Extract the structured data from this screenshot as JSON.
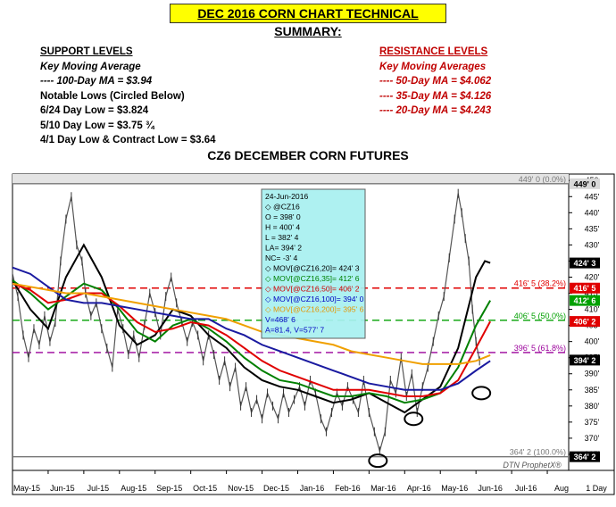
{
  "header": {
    "title": "DEC 2016 CORN CHART TECHNICAL SUMMARY:"
  },
  "support": {
    "heading": "SUPPORT LEVELS",
    "lines": [
      "Key Moving Average",
      "---- 100-Day MA = $3.94",
      "Notable Lows (Circled Below)",
      "6/24 Day Low = $3.824",
      "5/10 Day Low = $3.75 ¾",
      "4/1 Day Low & Contract Low = $3.64"
    ]
  },
  "resistance": {
    "heading": "RESISTANCE LEVELS",
    "lines": [
      "Key Moving Averages",
      "---- 50-Day MA = $4.062",
      "---- 35-Day MA = $4.126",
      "---- 20-Day MA = $4.243"
    ]
  },
  "chart_data": {
    "type": "line",
    "title": "CZ6 DECEMBER CORN FUTURES",
    "watermark": "DTN ProphetX®",
    "period_label": "1 Day",
    "x_tick_labels": [
      "May-15",
      "Jun-15",
      "Jul-15",
      "Aug-15",
      "Sep-15",
      "Oct-15",
      "Nov-15",
      "Dec-15",
      "Jan-16",
      "Feb-16",
      "Mar-16",
      "Apr-16",
      "May-16",
      "Jun-16",
      "Jul-16",
      "Aug"
    ],
    "y_axis": {
      "min": 360,
      "max": 452,
      "ticks": [
        "450",
        "445'",
        "440'",
        "435'",
        "430'",
        "425'",
        "420'",
        "415'",
        "410'",
        "405'",
        "400'",
        "395'",
        "390'",
        "385'",
        "380'",
        "375'",
        "370'",
        "365'"
      ]
    },
    "horizontal_levels": [
      {
        "label": "449' 0 (0.0%)",
        "value": 449,
        "color": "#777777",
        "style": "solid"
      },
      {
        "label": "416' 5 (38.2%)",
        "value": 416.6,
        "color": "#e00000",
        "style": "dashed"
      },
      {
        "label": "406' 5 (50.0%)",
        "value": 406.6,
        "color": "#00a000",
        "style": "dashed"
      },
      {
        "label": "396' 5 (61.8%)",
        "value": 396.6,
        "color": "#9b009b",
        "style": "dashed"
      },
      {
        "label": "364' 2 (100.0%)",
        "value": 364.25,
        "color": "#777777",
        "style": "solid"
      }
    ],
    "price_tags": [
      {
        "text": "449' 0",
        "value": 449,
        "bg": "#d8d8d8",
        "fg": "#000000"
      },
      {
        "text": "424' 3",
        "value": 424.4,
        "bg": "#000000",
        "fg": "#ffffff"
      },
      {
        "text": "416' 5",
        "value": 416.6,
        "bg": "#e00000",
        "fg": "#ffffff"
      },
      {
        "text": "412' 6",
        "value": 412.75,
        "bg": "#00a000",
        "fg": "#ffffff"
      },
      {
        "text": "406' 2",
        "value": 406.25,
        "bg": "#e00000",
        "fg": "#ffffff"
      },
      {
        "text": "394' 2",
        "value": 394.25,
        "bg": "#000000",
        "fg": "#ffffff"
      },
      {
        "text": "364' 2",
        "value": 364.25,
        "bg": "#000000",
        "fg": "#ffffff"
      }
    ],
    "tooltip": {
      "lines": [
        {
          "text": "24-Jun-2016",
          "color": "#000000"
        },
        {
          "text": "◇ @CZ16",
          "color": "#000000"
        },
        {
          "text": "O = 398' 0",
          "color": "#000000"
        },
        {
          "text": "H = 400' 4",
          "color": "#000000"
        },
        {
          "text": "L = 382' 4",
          "color": "#000000"
        },
        {
          "text": "LA= 394' 2",
          "color": "#000000"
        },
        {
          "text": "NC= -3' 4",
          "color": "#000000"
        },
        {
          "text": "◇ MOV[@CZ16,20]= 424' 3",
          "color": "#000000"
        },
        {
          "text": "◇ MOV[@CZ16,35]= 412' 6",
          "color": "#008000"
        },
        {
          "text": "◇ MOV[@CZ16,50]= 406' 2",
          "color": "#d00000"
        },
        {
          "text": "◇ MOV[@CZ16,100]= 394' 0",
          "color": "#0000c0"
        },
        {
          "text": "◇ MOV[@CZ16,200]= 395' 6",
          "color": "#e69500"
        },
        {
          "text": "V=468' 6",
          "color": "#0000c0"
        },
        {
          "text": "A=81.4, V=577' 7",
          "color": "#0000c0"
        }
      ]
    },
    "price_x": [
      "May-15",
      "Jun-15",
      "Jul-15",
      "Aug-15",
      "Sep-15",
      "Oct-15",
      "Nov-15",
      "Dec-15",
      "Jan-16",
      "Feb-16",
      "Mar-16",
      "Apr-16",
      "May-16",
      "Jun-16",
      "Jun-16 end"
    ],
    "price": [
      415,
      405,
      422,
      398,
      402,
      414,
      404,
      392,
      382,
      378,
      382,
      368,
      390,
      425,
      394
    ],
    "series": [
      {
        "name": "MOV[@CZ16,20]",
        "color": "#000000",
        "points": [
          [
            0,
            419
          ],
          [
            0.5,
            410
          ],
          [
            1,
            404
          ],
          [
            1.5,
            420
          ],
          [
            2,
            430
          ],
          [
            2.5,
            420
          ],
          [
            3,
            405
          ],
          [
            3.5,
            399
          ],
          [
            4,
            402
          ],
          [
            4.5,
            410
          ],
          [
            5,
            408
          ],
          [
            5.5,
            402
          ],
          [
            6,
            398
          ],
          [
            6.5,
            392
          ],
          [
            7,
            388
          ],
          [
            7.5,
            386
          ],
          [
            8,
            385
          ],
          [
            8.5,
            383
          ],
          [
            9,
            381
          ],
          [
            9.5,
            382
          ],
          [
            10,
            384
          ],
          [
            10.5,
            381
          ],
          [
            11,
            378
          ],
          [
            11.5,
            382
          ],
          [
            12,
            386
          ],
          [
            12.5,
            398
          ],
          [
            13,
            420
          ],
          [
            13.25,
            425
          ],
          [
            13.4,
            424.4
          ]
        ]
      },
      {
        "name": "MOV[@CZ16,35]",
        "color": "#008000",
        "points": [
          [
            0,
            419
          ],
          [
            0.5,
            415
          ],
          [
            1,
            410
          ],
          [
            1.5,
            414
          ],
          [
            2,
            418
          ],
          [
            2.5,
            416
          ],
          [
            3,
            410
          ],
          [
            3.5,
            403
          ],
          [
            4,
            400
          ],
          [
            4.5,
            405
          ],
          [
            5,
            407
          ],
          [
            5.5,
            404
          ],
          [
            6,
            400
          ],
          [
            6.5,
            395
          ],
          [
            7,
            391
          ],
          [
            7.5,
            388
          ],
          [
            8,
            387
          ],
          [
            8.5,
            385
          ],
          [
            9,
            383
          ],
          [
            9.5,
            383
          ],
          [
            10,
            384
          ],
          [
            10.5,
            383
          ],
          [
            11,
            381
          ],
          [
            11.5,
            382
          ],
          [
            12,
            384
          ],
          [
            12.5,
            392
          ],
          [
            13,
            405
          ],
          [
            13.4,
            412.75
          ]
        ]
      },
      {
        "name": "MOV[@CZ16,50]",
        "color": "#e00000",
        "points": [
          [
            0,
            418
          ],
          [
            0.5,
            416
          ],
          [
            1,
            412
          ],
          [
            1.5,
            413
          ],
          [
            2,
            415
          ],
          [
            2.5,
            415
          ],
          [
            3,
            411
          ],
          [
            3.5,
            406
          ],
          [
            4,
            403
          ],
          [
            4.5,
            404
          ],
          [
            5,
            406
          ],
          [
            5.5,
            405
          ],
          [
            6,
            402
          ],
          [
            6.5,
            398
          ],
          [
            7,
            394
          ],
          [
            7.5,
            391
          ],
          [
            8,
            389
          ],
          [
            8.5,
            387
          ],
          [
            9,
            385
          ],
          [
            9.5,
            385
          ],
          [
            10,
            385
          ],
          [
            10.5,
            384
          ],
          [
            11,
            383
          ],
          [
            11.5,
            383
          ],
          [
            12,
            384
          ],
          [
            12.5,
            388
          ],
          [
            13,
            398
          ],
          [
            13.4,
            406.25
          ]
        ]
      },
      {
        "name": "MOV[@CZ16,100]",
        "color": "#1a1aa0",
        "points": [
          [
            0,
            423
          ],
          [
            0.5,
            421
          ],
          [
            1,
            417
          ],
          [
            1.5,
            413
          ],
          [
            2,
            412
          ],
          [
            2.5,
            412
          ],
          [
            3,
            411
          ],
          [
            3.5,
            410
          ],
          [
            4,
            409
          ],
          [
            4.5,
            408
          ],
          [
            5,
            407
          ],
          [
            5.5,
            407
          ],
          [
            6,
            404
          ],
          [
            6.5,
            402
          ],
          [
            7,
            399
          ],
          [
            7.5,
            397
          ],
          [
            8,
            395
          ],
          [
            8.5,
            393
          ],
          [
            9,
            391
          ],
          [
            9.5,
            389
          ],
          [
            10,
            387
          ],
          [
            10.5,
            386
          ],
          [
            11,
            385
          ],
          [
            11.5,
            385
          ],
          [
            12,
            385
          ],
          [
            12.5,
            387
          ],
          [
            13,
            391
          ],
          [
            13.4,
            394
          ]
        ]
      },
      {
        "name": "MOV[@CZ16,200]",
        "color": "#f0a000",
        "points": [
          [
            0,
            418
          ],
          [
            0.5,
            417
          ],
          [
            1,
            416
          ],
          [
            1.5,
            415
          ],
          [
            2,
            415
          ],
          [
            2.5,
            414
          ],
          [
            3,
            413
          ],
          [
            3.5,
            412
          ],
          [
            4,
            411
          ],
          [
            4.5,
            410
          ],
          [
            5,
            409
          ],
          [
            5.5,
            408
          ],
          [
            6,
            407
          ],
          [
            6.5,
            405
          ],
          [
            7,
            403
          ],
          [
            7.5,
            402
          ],
          [
            8,
            401
          ],
          [
            8.5,
            400
          ],
          [
            9,
            399
          ],
          [
            9.5,
            397
          ],
          [
            10,
            396
          ],
          [
            10.5,
            395
          ],
          [
            11,
            394
          ],
          [
            11.5,
            393
          ],
          [
            12,
            393
          ],
          [
            12.5,
            393
          ],
          [
            13,
            394
          ],
          [
            13.4,
            395.75
          ]
        ]
      }
    ],
    "price_path": [
      [
        0,
        421
      ],
      [
        0.15,
        414
      ],
      [
        0.3,
        402
      ],
      [
        0.45,
        395
      ],
      [
        0.6,
        404
      ],
      [
        0.75,
        399
      ],
      [
        0.9,
        408
      ],
      [
        1.05,
        400
      ],
      [
        1.2,
        406
      ],
      [
        1.35,
        425
      ],
      [
        1.5,
        438
      ],
      [
        1.65,
        445
      ],
      [
        1.8,
        430
      ],
      [
        1.95,
        425
      ],
      [
        2.05,
        415
      ],
      [
        2.2,
        408
      ],
      [
        2.35,
        412
      ],
      [
        2.5,
        404
      ],
      [
        2.65,
        398
      ],
      [
        2.8,
        392
      ],
      [
        2.95,
        410
      ],
      [
        3.1,
        404
      ],
      [
        3.25,
        396
      ],
      [
        3.4,
        402
      ],
      [
        3.55,
        395
      ],
      [
        3.7,
        405
      ],
      [
        3.85,
        415
      ],
      [
        4,
        409
      ],
      [
        4.15,
        402
      ],
      [
        4.3,
        414
      ],
      [
        4.45,
        420
      ],
      [
        4.6,
        412
      ],
      [
        4.75,
        406
      ],
      [
        4.9,
        400
      ],
      [
        5.05,
        406
      ],
      [
        5.2,
        402
      ],
      [
        5.35,
        394
      ],
      [
        5.5,
        402
      ],
      [
        5.65,
        396
      ],
      [
        5.8,
        388
      ],
      [
        5.95,
        394
      ],
      [
        6.1,
        386
      ],
      [
        6.25,
        392
      ],
      [
        6.4,
        380
      ],
      [
        6.55,
        386
      ],
      [
        6.7,
        378
      ],
      [
        6.85,
        382
      ],
      [
        7,
        376
      ],
      [
        7.15,
        384
      ],
      [
        7.3,
        380
      ],
      [
        7.45,
        376
      ],
      [
        7.6,
        384
      ],
      [
        7.75,
        378
      ],
      [
        7.9,
        382
      ],
      [
        8.05,
        386
      ],
      [
        8.2,
        380
      ],
      [
        8.35,
        388
      ],
      [
        8.5,
        384
      ],
      [
        8.65,
        376
      ],
      [
        8.8,
        372
      ],
      [
        8.95,
        378
      ],
      [
        9.1,
        384
      ],
      [
        9.25,
        380
      ],
      [
        9.4,
        386
      ],
      [
        9.55,
        382
      ],
      [
        9.7,
        378
      ],
      [
        9.85,
        388
      ],
      [
        10,
        378
      ],
      [
        10.15,
        372
      ],
      [
        10.3,
        366
      ],
      [
        10.45,
        372
      ],
      [
        10.6,
        388
      ],
      [
        10.75,
        384
      ],
      [
        10.9,
        395
      ],
      [
        11.05,
        383
      ],
      [
        11.2,
        390
      ],
      [
        11.35,
        378
      ],
      [
        11.5,
        386
      ],
      [
        11.65,
        392
      ],
      [
        11.8,
        400
      ],
      [
        11.95,
        408
      ],
      [
        12.1,
        414
      ],
      [
        12.25,
        426
      ],
      [
        12.4,
        438
      ],
      [
        12.5,
        446
      ],
      [
        12.6,
        440
      ],
      [
        12.7,
        432
      ],
      [
        12.8,
        425
      ],
      [
        12.9,
        410
      ],
      [
        13,
        400
      ],
      [
        13.1,
        394
      ]
    ],
    "circles": [
      {
        "x": 10.25,
        "y": 363
      },
      {
        "x": 11.25,
        "y": 376
      },
      {
        "x": 13.15,
        "y": 384
      }
    ]
  }
}
